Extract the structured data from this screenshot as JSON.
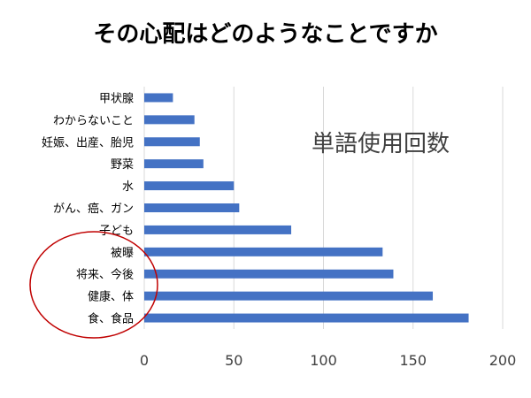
{
  "chart_data": {
    "type": "bar",
    "orientation": "horizontal",
    "title": "その心配はどのようなことですか",
    "annotation": "単語使用回数",
    "categories": [
      "食、食品",
      "健康、体",
      "将来、今後",
      "被曝",
      "子ども",
      "がん、癌、ガン",
      "水",
      "野菜",
      "妊娠、出産、胎児",
      "わからないこと",
      "甲状腺"
    ],
    "values": [
      181,
      161,
      139,
      133,
      82,
      53,
      50,
      33,
      31,
      28,
      16
    ],
    "x_ticks": [
      "0",
      "50",
      "100",
      "150",
      "200"
    ],
    "xlim": [
      0,
      200
    ],
    "grid": "vertical",
    "bar_color": "#4472C4",
    "circle_color": "#C00000",
    "circled_categories": [
      "食、食品",
      "健康、体",
      "将来、今後"
    ]
  }
}
